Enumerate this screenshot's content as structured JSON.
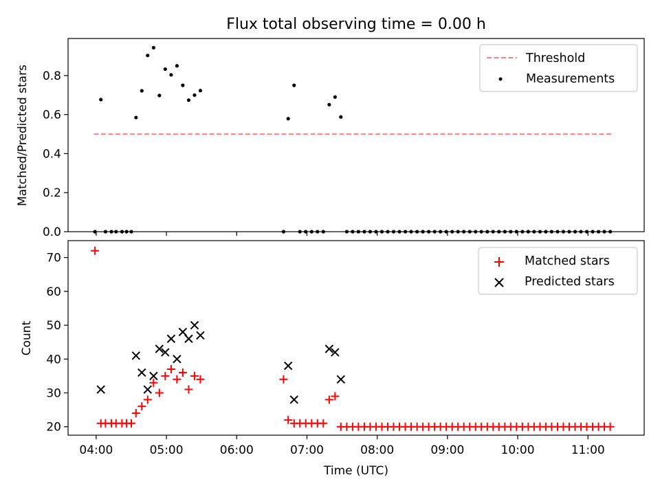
{
  "figure": {
    "title": "Flux total observing time = 0.00 h"
  },
  "chart_data": [
    {
      "type": "scatter",
      "panel": "top",
      "title": "Flux total observing time = 0.00 h",
      "ylabel": "Matched/Predicted stars",
      "xlabel": "",
      "xlim": [
        3.6,
        11.8
      ],
      "ylim": [
        0,
        0.99
      ],
      "yticks": [
        0.0,
        0.2,
        0.4,
        0.6,
        0.8
      ],
      "ytick_labels": [
        "0.0",
        "0.2",
        "0.4",
        "0.6",
        "0.8"
      ],
      "xticks": [
        4,
        5,
        6,
        7,
        8,
        9,
        10,
        11
      ],
      "grid": false,
      "legend_position": "upper right",
      "series": [
        {
          "name": "Threshold",
          "kind": "line",
          "style": "dashed",
          "color": "#ff7f7f",
          "x": [
            3.967,
            11.333
          ],
          "y": [
            0.5,
            0.5
          ]
        },
        {
          "name": "Measurements",
          "kind": "scatter",
          "marker": "dot",
          "color": "#000000",
          "x": [
            3.983,
            4.067,
            4.133,
            4.217,
            4.283,
            4.367,
            4.433,
            4.5,
            4.567,
            4.65,
            4.733,
            4.817,
            4.9,
            4.983,
            5.067,
            5.15,
            5.233,
            5.317,
            5.4,
            5.483,
            6.667,
            6.733,
            6.817,
            6.9,
            6.983,
            7.067,
            7.15,
            7.233,
            7.317,
            7.4,
            7.483,
            7.567,
            7.65,
            7.733,
            7.817,
            7.9,
            7.983,
            8.067,
            8.15,
            8.233,
            8.317,
            8.4,
            8.483,
            8.567,
            8.65,
            8.733,
            8.817,
            8.9,
            8.983,
            9.067,
            9.15,
            9.233,
            9.317,
            9.4,
            9.483,
            9.567,
            9.65,
            9.733,
            9.817,
            9.9,
            9.983,
            10.067,
            10.15,
            10.233,
            10.317,
            10.4,
            10.483,
            10.567,
            10.65,
            10.733,
            10.817,
            10.9,
            10.983,
            11.067,
            11.15,
            11.233,
            11.317
          ],
          "y": [
            0.0,
            0.677,
            0.0,
            0.0,
            0.0,
            0.0,
            0.0,
            0.0,
            0.585,
            0.722,
            0.903,
            0.943,
            0.698,
            0.833,
            0.804,
            0.85,
            0.75,
            0.674,
            0.7,
            0.723,
            0.0,
            0.579,
            0.75,
            0.0,
            0.0,
            0.0,
            0.0,
            0.0,
            0.651,
            0.69,
            0.588,
            0.0,
            0.0,
            0.0,
            0.0,
            0.0,
            0.0,
            0.0,
            0.0,
            0.0,
            0.0,
            0.0,
            0.0,
            0.0,
            0.0,
            0.0,
            0.0,
            0.0,
            0.0,
            0.0,
            0.0,
            0.0,
            0.0,
            0.0,
            0.0,
            0.0,
            0.0,
            0.0,
            0.0,
            0.0,
            0.0,
            0.0,
            0.0,
            0.0,
            0.0,
            0.0,
            0.0,
            0.0,
            0.0,
            0.0,
            0.0,
            0.0,
            0.0,
            0.0,
            0.0,
            0.0,
            0.0
          ]
        }
      ]
    },
    {
      "type": "scatter",
      "panel": "bottom",
      "title": "",
      "ylabel": "Count",
      "xlabel": "Time (UTC)",
      "xlim": [
        3.6,
        11.8
      ],
      "ylim": [
        17.5,
        75
      ],
      "yticks": [
        20,
        30,
        40,
        50,
        60,
        70
      ],
      "ytick_labels": [
        "20",
        "30",
        "40",
        "50",
        "60",
        "70"
      ],
      "xticks": [
        4,
        5,
        6,
        7,
        8,
        9,
        10,
        11
      ],
      "xtick_labels": [
        "04:00",
        "05:00",
        "06:00",
        "07:00",
        "08:00",
        "09:00",
        "10:00",
        "11:00"
      ],
      "grid": false,
      "legend_position": "upper right",
      "series": [
        {
          "name": "Matched stars",
          "kind": "scatter",
          "marker": "plus",
          "color": "#ff0000",
          "x": [
            3.983,
            4.067,
            4.133,
            4.217,
            4.283,
            4.367,
            4.433,
            4.5,
            4.567,
            4.65,
            4.733,
            4.817,
            4.9,
            4.983,
            5.067,
            5.15,
            5.233,
            5.317,
            5.4,
            5.483,
            6.667,
            6.733,
            6.817,
            6.9,
            6.983,
            7.067,
            7.15,
            7.233,
            7.317,
            7.4,
            7.483,
            7.567,
            7.65,
            7.733,
            7.817,
            7.9,
            7.983,
            8.067,
            8.15,
            8.233,
            8.317,
            8.4,
            8.483,
            8.567,
            8.65,
            8.733,
            8.817,
            8.9,
            8.983,
            9.067,
            9.15,
            9.233,
            9.317,
            9.4,
            9.483,
            9.567,
            9.65,
            9.733,
            9.817,
            9.9,
            9.983,
            10.067,
            10.15,
            10.233,
            10.317,
            10.4,
            10.483,
            10.567,
            10.65,
            10.733,
            10.817,
            10.9,
            10.983,
            11.067,
            11.15,
            11.233,
            11.317
          ],
          "y": [
            72,
            21,
            21,
            21,
            21,
            21,
            21,
            21,
            24,
            26,
            28,
            33,
            30,
            35,
            37,
            34,
            36,
            31,
            35,
            34,
            34,
            22,
            21,
            21,
            21,
            21,
            21,
            21,
            28,
            29,
            20,
            20,
            20,
            20,
            20,
            20,
            20,
            20,
            20,
            20,
            20,
            20,
            20,
            20,
            20,
            20,
            20,
            20,
            20,
            20,
            20,
            20,
            20,
            20,
            20,
            20,
            20,
            20,
            20,
            20,
            20,
            20,
            20,
            20,
            20,
            20,
            20,
            20,
            20,
            20,
            20,
            20,
            20,
            20,
            20,
            20,
            20
          ]
        },
        {
          "name": "Predicted stars",
          "kind": "scatter",
          "marker": "x",
          "color": "#000000",
          "x": [
            4.067,
            4.567,
            4.65,
            4.733,
            4.817,
            4.9,
            4.983,
            5.067,
            5.15,
            5.233,
            5.317,
            5.4,
            5.483,
            6.733,
            6.817,
            7.317,
            7.4,
            7.483
          ],
          "y": [
            31,
            41,
            36,
            31,
            35,
            43,
            42,
            46,
            40,
            48,
            46,
            50,
            47,
            38,
            28,
            43,
            42,
            34
          ]
        }
      ]
    }
  ]
}
